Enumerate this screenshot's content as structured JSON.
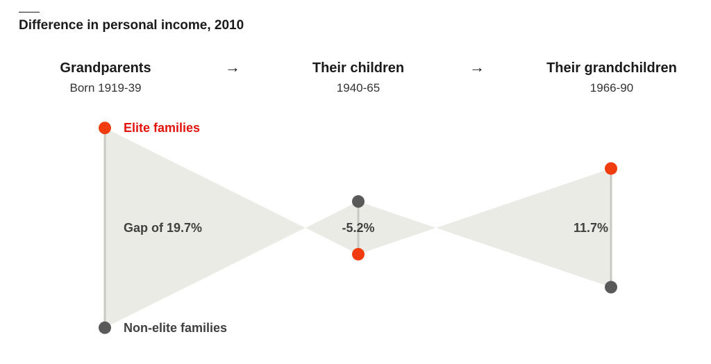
{
  "title": "Difference in personal income, 2010",
  "columns": [
    {
      "heading": "Grandparents",
      "sub": "Born 1919-39"
    },
    {
      "heading": "Their children",
      "sub": "1940-65"
    },
    {
      "heading": "Their grandchildren",
      "sub": "1966-90"
    }
  ],
  "arrows": [
    "→",
    "→"
  ],
  "colors": {
    "elite": "#f03c0f",
    "elite_label": "#e3120b",
    "non_elite": "#595959",
    "fill": "#ebebe6",
    "line": "#c8c8c2",
    "text": "#404040"
  },
  "chart_data": {
    "type": "dot-gap",
    "title": "Difference in personal income, 2010",
    "unit": "%",
    "series": [
      {
        "name": "Elite families",
        "values": [
          9.85,
          -2.6,
          5.85
        ]
      },
      {
        "name": "Non-elite families",
        "values": [
          -9.85,
          2.6,
          -5.85
        ]
      }
    ],
    "categories": [
      "Grandparents",
      "Their children",
      "Their grandchildren"
    ],
    "gaps": [
      19.7,
      -5.2,
      11.7
    ],
    "gap_labels": [
      "Gap of 19.7%",
      "-5.2%",
      "11.7%"
    ],
    "series_labels": {
      "elite": "Elite families",
      "non_elite": "Non-elite families"
    }
  }
}
